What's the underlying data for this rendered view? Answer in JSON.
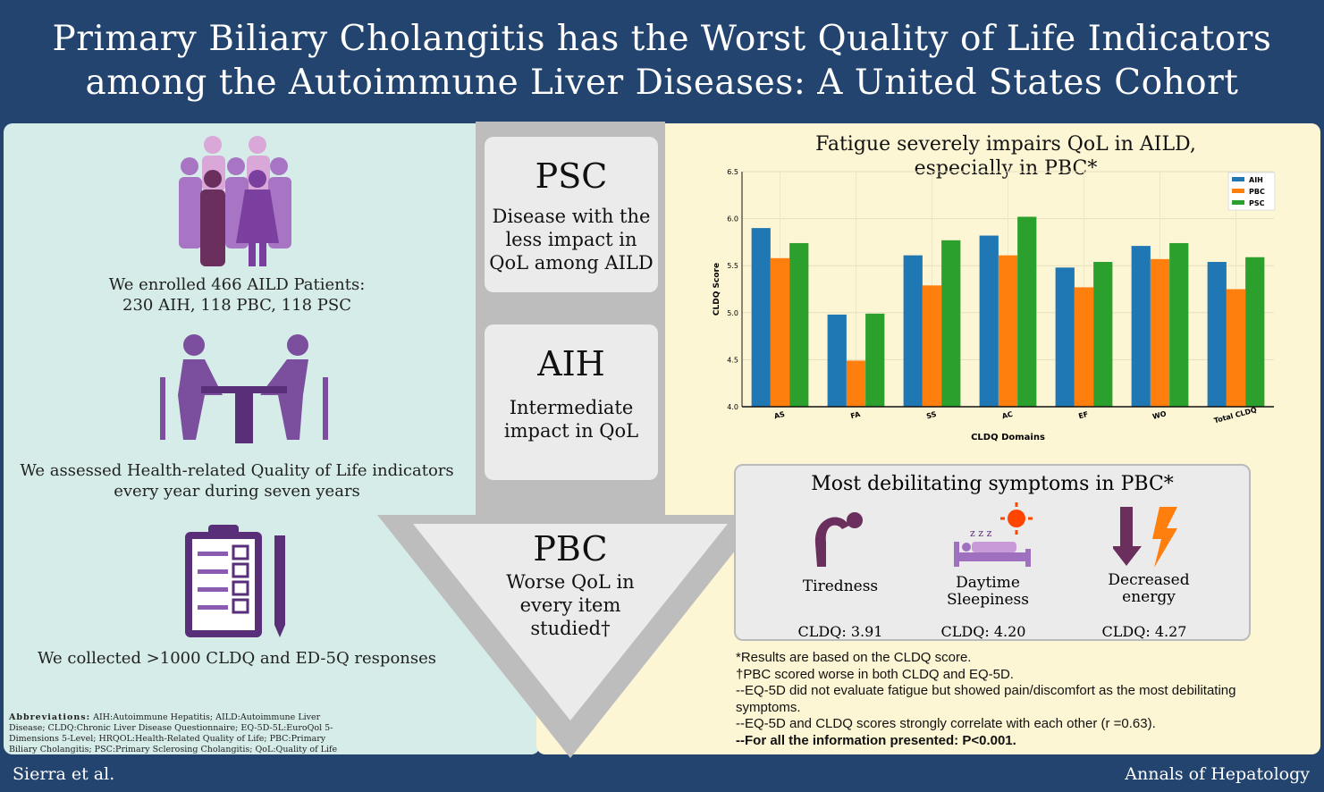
{
  "title": {
    "line1": "Primary Biliary Cholangitis has the Worst Quality of Life Indicators",
    "line2": "among the Autoimmune Liver Diseases: A United States Cohort"
  },
  "left": {
    "enrolled": {
      "line1": "We enrolled 466 AILD Patients:",
      "line2": "230 AIH, 118 PBC, 118 PSC"
    },
    "assessed": {
      "line1": "We assessed Health-related Quality of Life indicators",
      "line2": "every year during seven years"
    },
    "collected": "We collected >1000 CLDQ and ED-5Q responses",
    "abbr_label": "Abbreviations:",
    "abbr_text": "AIH:Autoimmune Hepatitis; AILD:Autoimmune Liver Disease; CLDQ:Chronic Liver Disease Questionnaire; EQ-5D-5L:EuroQol 5-Dimensions 5-Level; HRQOL:Health-Related Quality of Life; PBC:Primary Biliary Cholangitis; PSC:Primary Sclerosing Cholangitis; QoL:Quality of Life"
  },
  "middle": {
    "psc": {
      "title": "PSC",
      "text": "Disease with the less impact in QoL among AILD"
    },
    "aih": {
      "title": "AIH",
      "text": "Intermediate impact in QoL"
    },
    "pbc": {
      "title": "PBC",
      "text": "Worse QoL in every item studied†"
    }
  },
  "chart_title": {
    "line1": "Fatigue severely impairs QoL in AILD,",
    "line2": "especially in PBC*"
  },
  "chart_data": {
    "type": "bar",
    "xlabel": "CLDQ Domains",
    "ylabel": "CLDQ Score",
    "categories": [
      "AS",
      "FA",
      "SS",
      "AC",
      "EF",
      "WO",
      "Total CLDQ"
    ],
    "ylim": [
      4.0,
      6.5
    ],
    "yticks": [
      "4.0",
      "4.5",
      "5.0",
      "5.5",
      "6.0",
      "6.5"
    ],
    "grid": true,
    "legend": "top-right",
    "series": [
      {
        "name": "AIH",
        "color": "#1f77b4",
        "values": [
          5.9,
          4.98,
          5.61,
          5.82,
          5.48,
          5.71,
          5.54
        ]
      },
      {
        "name": "PBC",
        "color": "#ff7f0e",
        "values": [
          5.58,
          4.49,
          5.29,
          5.61,
          5.27,
          5.57,
          5.25
        ]
      },
      {
        "name": "PSC",
        "color": "#2ca02c",
        "values": [
          5.74,
          4.99,
          5.77,
          6.02,
          5.54,
          5.74,
          5.59
        ]
      }
    ]
  },
  "symptoms": {
    "title": "Most debilitating symptoms in PBC*",
    "items": [
      {
        "label": "Tiredness",
        "value": "CLDQ: 3.91"
      },
      {
        "label": "Daytime Sleepiness",
        "value": "CLDQ: 4.20"
      },
      {
        "label": "Decreased energy",
        "value": "CLDQ: 4.27"
      }
    ]
  },
  "notes": [
    "*Results are based on the CLDQ score.",
    "†PBC scored worse in both CLDQ and EQ-5D.",
    "--EQ-5D did not evaluate fatigue but showed pain/discomfort as the most debilitating symptoms.",
    "--EQ-5D and CLDQ scores strongly correlate with each other (r =0.63).",
    "--For all the information presented: P<0.001."
  ],
  "footer": {
    "author": "Sierra et al.",
    "journal": "Annals of Hepatology"
  },
  "colors": {
    "header": "#23446e",
    "left_bg": "#d5ece8",
    "right_bg": "#fdf6d4",
    "icon_purple": "#7b4f9e"
  }
}
